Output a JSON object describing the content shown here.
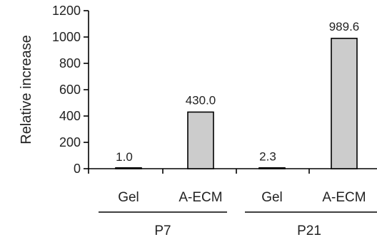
{
  "chart_data": {
    "type": "bar",
    "ylabel": "Relative increase",
    "xlabel": "",
    "title": "",
    "ylim": [
      0,
      1200
    ],
    "yticks": [
      0,
      200,
      400,
      600,
      800,
      1000,
      1200
    ],
    "grid": false,
    "legend": "none",
    "bar_color": "#cccccc",
    "bar_edge_color": "#000000",
    "categories": [
      "Gel",
      "A-ECM",
      "Gel",
      "A-ECM"
    ],
    "values": [
      1.0,
      430.0,
      2.3,
      989.6
    ],
    "data_labels": [
      "1.0",
      "430.0",
      "2.3",
      "989.6"
    ],
    "groups": [
      {
        "name": "P7",
        "categories": [
          "Gel",
          "A-ECM"
        ]
      },
      {
        "name": "P21",
        "categories": [
          "Gel",
          "A-ECM"
        ]
      }
    ]
  }
}
